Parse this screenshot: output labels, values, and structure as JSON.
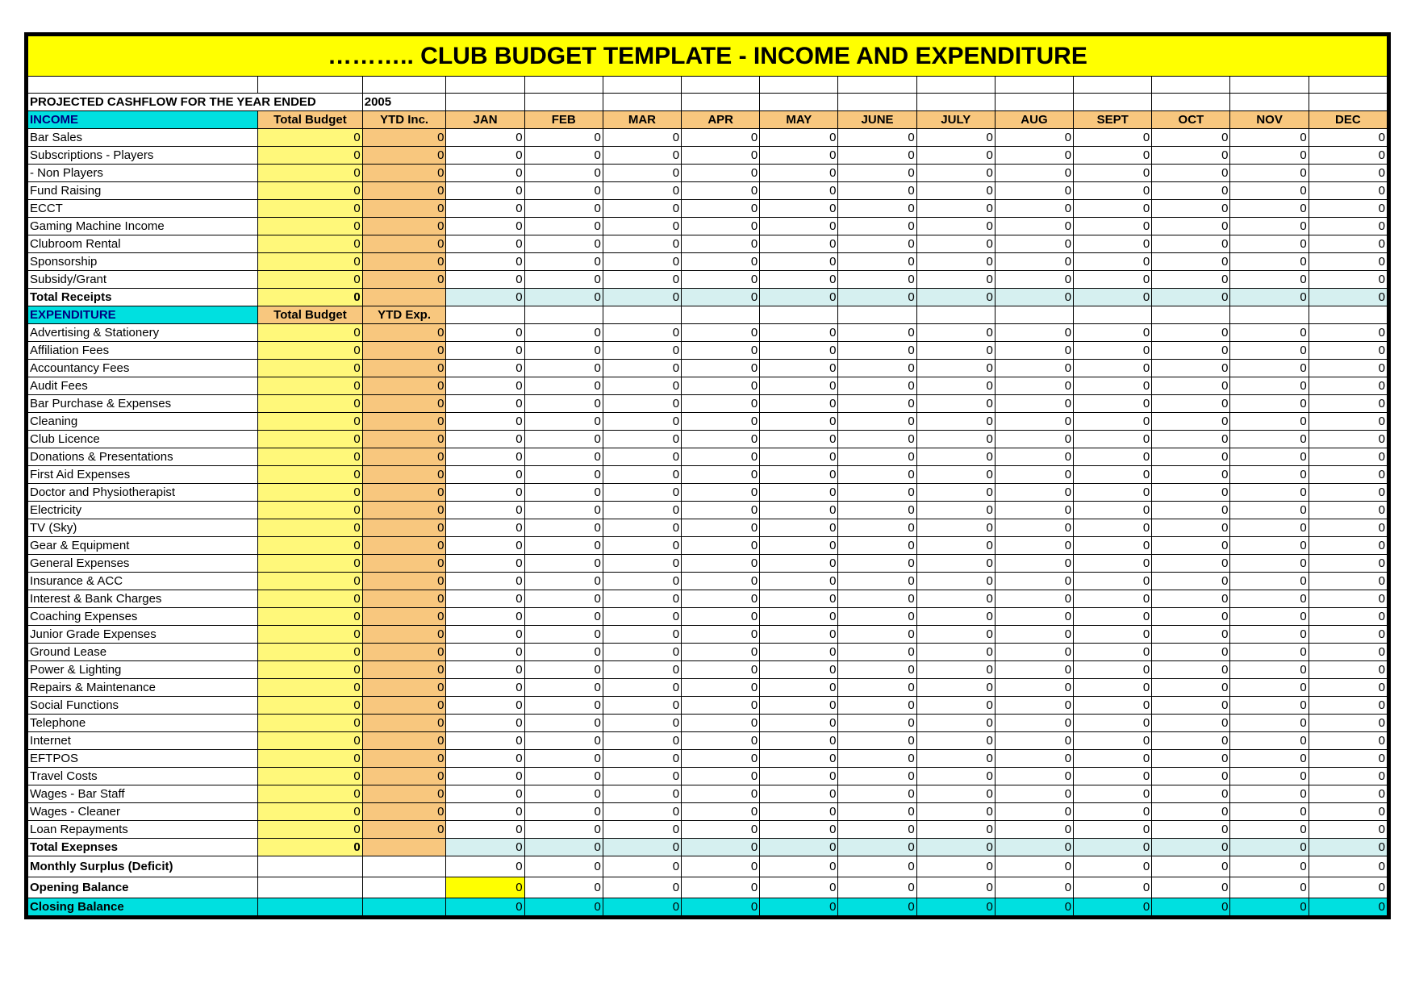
{
  "title": "……….. CLUB BUDGET TEMPLATE - INCOME AND EXPENDITURE",
  "subheading_prefix": "PROJECTED CASHFLOW FOR THE YEAR ENDED",
  "subheading_year": "2005",
  "colors": {
    "title_bg": "#ffff00",
    "section_bg": "#00e0e0",
    "section_fg": "#000080",
    "colhdr_bg": "#f8c77e",
    "total_budget_bg": "#fff87a",
    "ytd_bg": "#f8c77e",
    "total_row_month_bg": "#d6f0f0",
    "closing_bg": "#00e0e0",
    "opening_jan_bg": "#ffff00",
    "border": "#000000"
  },
  "section_income_label": "INCOME",
  "section_expenditure_label": "EXPENDITURE",
  "col_total_budget": "Total Budget",
  "col_ytd_inc": "YTD Inc.",
  "col_ytd_exp": "YTD Exp.",
  "months": [
    "JAN",
    "FEB",
    "MAR",
    "APR",
    "MAY",
    "JUNE",
    "JULY",
    "AUG",
    "SEPT",
    "OCT",
    "NOV",
    "DEC"
  ],
  "income_rows": [
    {
      "label": "Bar Sales",
      "tb": 0,
      "ytd": 0,
      "m": [
        0,
        0,
        0,
        0,
        0,
        0,
        0,
        0,
        0,
        0,
        0,
        0
      ]
    },
    {
      "label": "Subscriptions - Players",
      "tb": 0,
      "ytd": 0,
      "m": [
        0,
        0,
        0,
        0,
        0,
        0,
        0,
        0,
        0,
        0,
        0,
        0
      ]
    },
    {
      "label": "              - Non Players",
      "tb": 0,
      "ytd": 0,
      "m": [
        0,
        0,
        0,
        0,
        0,
        0,
        0,
        0,
        0,
        0,
        0,
        0
      ]
    },
    {
      "label": "Fund Raising",
      "tb": 0,
      "ytd": 0,
      "m": [
        0,
        0,
        0,
        0,
        0,
        0,
        0,
        0,
        0,
        0,
        0,
        0
      ]
    },
    {
      "label": "ECCT",
      "tb": 0,
      "ytd": 0,
      "m": [
        0,
        0,
        0,
        0,
        0,
        0,
        0,
        0,
        0,
        0,
        0,
        0
      ]
    },
    {
      "label": "Gaming Machine Income",
      "tb": 0,
      "ytd": 0,
      "m": [
        0,
        0,
        0,
        0,
        0,
        0,
        0,
        0,
        0,
        0,
        0,
        0
      ]
    },
    {
      "label": "Clubroom Rental",
      "tb": 0,
      "ytd": 0,
      "m": [
        0,
        0,
        0,
        0,
        0,
        0,
        0,
        0,
        0,
        0,
        0,
        0
      ]
    },
    {
      "label": "Sponsorship",
      "tb": 0,
      "ytd": 0,
      "m": [
        0,
        0,
        0,
        0,
        0,
        0,
        0,
        0,
        0,
        0,
        0,
        0
      ]
    },
    {
      "label": "Subsidy/Grant",
      "tb": 0,
      "ytd": 0,
      "m": [
        0,
        0,
        0,
        0,
        0,
        0,
        0,
        0,
        0,
        0,
        0,
        0
      ]
    }
  ],
  "income_total": {
    "label": "Total Receipts",
    "tb": 0,
    "ytd": "",
    "m": [
      0,
      0,
      0,
      0,
      0,
      0,
      0,
      0,
      0,
      0,
      0,
      0
    ]
  },
  "expenditure_rows": [
    {
      "label": "Advertising & Stationery",
      "tb": 0,
      "ytd": 0,
      "m": [
        0,
        0,
        0,
        0,
        0,
        0,
        0,
        0,
        0,
        0,
        0,
        0
      ]
    },
    {
      "label": "Affiliation Fees",
      "tb": 0,
      "ytd": 0,
      "m": [
        0,
        0,
        0,
        0,
        0,
        0,
        0,
        0,
        0,
        0,
        0,
        0
      ]
    },
    {
      "label": "Accountancy Fees",
      "tb": 0,
      "ytd": 0,
      "m": [
        0,
        0,
        0,
        0,
        0,
        0,
        0,
        0,
        0,
        0,
        0,
        0
      ]
    },
    {
      "label": "Audit Fees",
      "tb": 0,
      "ytd": 0,
      "m": [
        0,
        0,
        0,
        0,
        0,
        0,
        0,
        0,
        0,
        0,
        0,
        0
      ]
    },
    {
      "label": "Bar Purchase & Expenses",
      "tb": 0,
      "ytd": 0,
      "m": [
        0,
        0,
        0,
        0,
        0,
        0,
        0,
        0,
        0,
        0,
        0,
        0
      ]
    },
    {
      "label": "Cleaning",
      "tb": 0,
      "ytd": 0,
      "m": [
        0,
        0,
        0,
        0,
        0,
        0,
        0,
        0,
        0,
        0,
        0,
        0
      ]
    },
    {
      "label": "Club Licence",
      "tb": 0,
      "ytd": 0,
      "m": [
        0,
        0,
        0,
        0,
        0,
        0,
        0,
        0,
        0,
        0,
        0,
        0
      ]
    },
    {
      "label": "Donations & Presentations",
      "tb": 0,
      "ytd": 0,
      "m": [
        0,
        0,
        0,
        0,
        0,
        0,
        0,
        0,
        0,
        0,
        0,
        0
      ]
    },
    {
      "label": "First Aid Expenses",
      "tb": 0,
      "ytd": 0,
      "m": [
        0,
        0,
        0,
        0,
        0,
        0,
        0,
        0,
        0,
        0,
        0,
        0
      ]
    },
    {
      "label": "Doctor and Physiotherapist",
      "tb": 0,
      "ytd": 0,
      "m": [
        0,
        0,
        0,
        0,
        0,
        0,
        0,
        0,
        0,
        0,
        0,
        0
      ]
    },
    {
      "label": "Electricity",
      "tb": 0,
      "ytd": 0,
      "m": [
        0,
        0,
        0,
        0,
        0,
        0,
        0,
        0,
        0,
        0,
        0,
        0
      ]
    },
    {
      "label": "TV (Sky)",
      "tb": 0,
      "ytd": 0,
      "m": [
        0,
        0,
        0,
        0,
        0,
        0,
        0,
        0,
        0,
        0,
        0,
        0
      ]
    },
    {
      "label": "Gear & Equipment",
      "tb": 0,
      "ytd": 0,
      "m": [
        0,
        0,
        0,
        0,
        0,
        0,
        0,
        0,
        0,
        0,
        0,
        0
      ]
    },
    {
      "label": "General Expenses",
      "tb": 0,
      "ytd": 0,
      "m": [
        0,
        0,
        0,
        0,
        0,
        0,
        0,
        0,
        0,
        0,
        0,
        0
      ]
    },
    {
      "label": "Insurance & ACC",
      "tb": 0,
      "ytd": 0,
      "m": [
        0,
        0,
        0,
        0,
        0,
        0,
        0,
        0,
        0,
        0,
        0,
        0
      ]
    },
    {
      "label": "Interest & Bank Charges",
      "tb": 0,
      "ytd": 0,
      "m": [
        0,
        0,
        0,
        0,
        0,
        0,
        0,
        0,
        0,
        0,
        0,
        0
      ]
    },
    {
      "label": "Coaching Expenses",
      "tb": 0,
      "ytd": 0,
      "m": [
        0,
        0,
        0,
        0,
        0,
        0,
        0,
        0,
        0,
        0,
        0,
        0
      ]
    },
    {
      "label": "Junior Grade Expenses",
      "tb": 0,
      "ytd": 0,
      "m": [
        0,
        0,
        0,
        0,
        0,
        0,
        0,
        0,
        0,
        0,
        0,
        0
      ]
    },
    {
      "label": "Ground Lease",
      "tb": 0,
      "ytd": 0,
      "m": [
        0,
        0,
        0,
        0,
        0,
        0,
        0,
        0,
        0,
        0,
        0,
        0
      ]
    },
    {
      "label": "Power & Lighting",
      "tb": 0,
      "ytd": 0,
      "m": [
        0,
        0,
        0,
        0,
        0,
        0,
        0,
        0,
        0,
        0,
        0,
        0
      ]
    },
    {
      "label": "Repairs & Maintenance",
      "tb": 0,
      "ytd": 0,
      "m": [
        0,
        0,
        0,
        0,
        0,
        0,
        0,
        0,
        0,
        0,
        0,
        0
      ]
    },
    {
      "label": "Social Functions",
      "tb": 0,
      "ytd": 0,
      "m": [
        0,
        0,
        0,
        0,
        0,
        0,
        0,
        0,
        0,
        0,
        0,
        0
      ]
    },
    {
      "label": "Telephone",
      "tb": 0,
      "ytd": 0,
      "m": [
        0,
        0,
        0,
        0,
        0,
        0,
        0,
        0,
        0,
        0,
        0,
        0
      ]
    },
    {
      "label": "Internet",
      "tb": 0,
      "ytd": 0,
      "m": [
        0,
        0,
        0,
        0,
        0,
        0,
        0,
        0,
        0,
        0,
        0,
        0
      ]
    },
    {
      "label": "EFTPOS",
      "tb": 0,
      "ytd": 0,
      "m": [
        0,
        0,
        0,
        0,
        0,
        0,
        0,
        0,
        0,
        0,
        0,
        0
      ]
    },
    {
      "label": "Travel Costs",
      "tb": 0,
      "ytd": 0,
      "m": [
        0,
        0,
        0,
        0,
        0,
        0,
        0,
        0,
        0,
        0,
        0,
        0
      ]
    },
    {
      "label": "Wages - Bar Staff",
      "tb": 0,
      "ytd": 0,
      "m": [
        0,
        0,
        0,
        0,
        0,
        0,
        0,
        0,
        0,
        0,
        0,
        0
      ]
    },
    {
      "label": "Wages - Cleaner",
      "tb": 0,
      "ytd": 0,
      "m": [
        0,
        0,
        0,
        0,
        0,
        0,
        0,
        0,
        0,
        0,
        0,
        0
      ]
    },
    {
      "label": "Loan Repayments",
      "tb": 0,
      "ytd": 0,
      "m": [
        0,
        0,
        0,
        0,
        0,
        0,
        0,
        0,
        0,
        0,
        0,
        0
      ]
    }
  ],
  "expenditure_total": {
    "label": "Total  Exepnses",
    "tb": 0,
    "ytd": "",
    "m": [
      0,
      0,
      0,
      0,
      0,
      0,
      0,
      0,
      0,
      0,
      0,
      0
    ]
  },
  "monthly_surplus": {
    "label": "Monthly Surplus (Deficit)",
    "m": [
      0,
      0,
      0,
      0,
      0,
      0,
      0,
      0,
      0,
      0,
      0,
      0
    ]
  },
  "opening_balance": {
    "label": "Opening Balance",
    "m": [
      0,
      0,
      0,
      0,
      0,
      0,
      0,
      0,
      0,
      0,
      0,
      0
    ]
  },
  "closing_balance": {
    "label": "Closing Balance",
    "m": [
      0,
      0,
      0,
      0,
      0,
      0,
      0,
      0,
      0,
      0,
      0,
      0
    ]
  }
}
